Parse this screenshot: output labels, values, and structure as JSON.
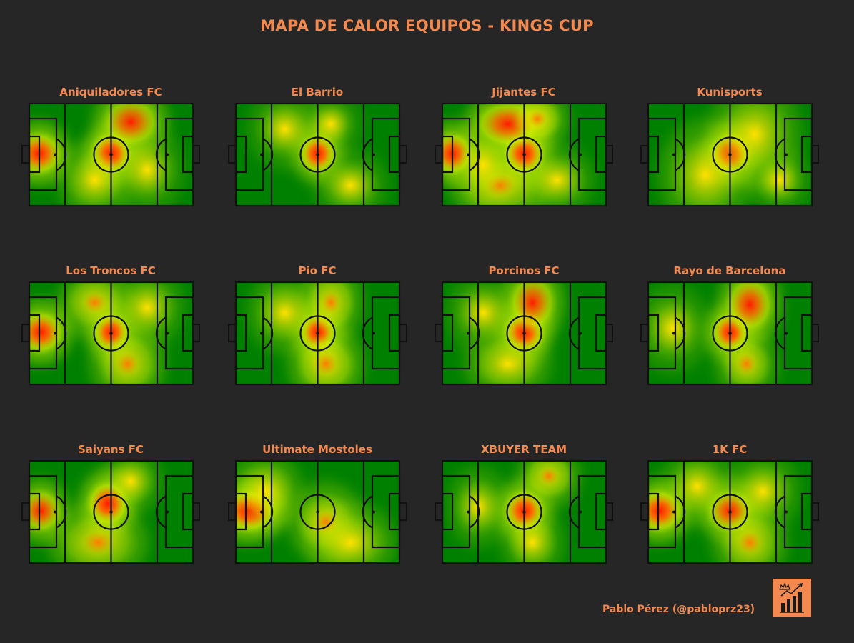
{
  "title": "MAPA DE CALOR EQUIPOS - KINGS CUP",
  "credit": "Pablo Pérez (@pabloprz23)",
  "colors": {
    "background": "#262626",
    "title": "#F4894F",
    "pitch_low": "#008000",
    "pitch_mid": "#FFFF00",
    "pitch_high": "#FF0000",
    "lines": "#000000",
    "logo_bg": "#F4894F"
  },
  "logo_icon": "crown-bar-chart-icon",
  "chart_data": {
    "type": "heatmap",
    "description_units": "normalized pitch coordinates (x 0-1 left to right, y 0-1 top to bottom)",
    "teams": [
      {
        "name": "Aniquiladores FC",
        "hotspots": [
          [
            0.06,
            0.49,
            0.1,
            0.14,
            0.95
          ],
          [
            0.5,
            0.49,
            0.09,
            0.14,
            1.0
          ],
          [
            0.62,
            0.18,
            0.12,
            0.16,
            0.8
          ],
          [
            0.4,
            0.75,
            0.12,
            0.18,
            0.45
          ],
          [
            0.72,
            0.65,
            0.12,
            0.2,
            0.35
          ]
        ]
      },
      {
        "name": "El Barrio",
        "hotspots": [
          [
            0.5,
            0.49,
            0.08,
            0.13,
            1.0
          ],
          [
            0.3,
            0.25,
            0.12,
            0.18,
            0.35
          ],
          [
            0.7,
            0.8,
            0.12,
            0.16,
            0.35
          ],
          [
            0.58,
            0.2,
            0.1,
            0.15,
            0.3
          ]
        ]
      },
      {
        "name": "Jijantes FC",
        "hotspots": [
          [
            0.06,
            0.49,
            0.09,
            0.14,
            0.95
          ],
          [
            0.5,
            0.49,
            0.09,
            0.14,
            1.0
          ],
          [
            0.4,
            0.2,
            0.14,
            0.15,
            0.85
          ],
          [
            0.58,
            0.15,
            0.1,
            0.14,
            0.6
          ],
          [
            0.35,
            0.8,
            0.16,
            0.18,
            0.55
          ],
          [
            0.7,
            0.75,
            0.12,
            0.16,
            0.4
          ],
          [
            0.25,
            0.6,
            0.1,
            0.18,
            0.4
          ]
        ]
      },
      {
        "name": "Kunisports",
        "hotspots": [
          [
            0.5,
            0.49,
            0.09,
            0.14,
            1.0
          ],
          [
            0.35,
            0.7,
            0.15,
            0.25,
            0.45
          ],
          [
            0.65,
            0.3,
            0.15,
            0.25,
            0.45
          ],
          [
            0.8,
            0.75,
            0.1,
            0.15,
            0.35
          ]
        ]
      },
      {
        "name": "Los Troncos FC",
        "hotspots": [
          [
            0.07,
            0.49,
            0.1,
            0.14,
            0.95
          ],
          [
            0.5,
            0.49,
            0.08,
            0.13,
            1.0
          ],
          [
            0.4,
            0.2,
            0.12,
            0.16,
            0.55
          ],
          [
            0.6,
            0.8,
            0.12,
            0.18,
            0.6
          ],
          [
            0.72,
            0.25,
            0.12,
            0.18,
            0.4
          ]
        ]
      },
      {
        "name": "Pio FC",
        "hotspots": [
          [
            0.5,
            0.49,
            0.08,
            0.13,
            1.0
          ],
          [
            0.58,
            0.2,
            0.1,
            0.18,
            0.6
          ],
          [
            0.55,
            0.8,
            0.12,
            0.18,
            0.65
          ],
          [
            0.3,
            0.3,
            0.12,
            0.18,
            0.45
          ]
        ]
      },
      {
        "name": "Porcinos FC",
        "hotspots": [
          [
            0.5,
            0.49,
            0.09,
            0.14,
            1.0
          ],
          [
            0.55,
            0.2,
            0.1,
            0.18,
            0.8
          ],
          [
            0.4,
            0.8,
            0.14,
            0.16,
            0.5
          ],
          [
            0.25,
            0.3,
            0.12,
            0.18,
            0.35
          ]
        ]
      },
      {
        "name": "Rayo de Barcelona",
        "hotspots": [
          [
            0.5,
            0.49,
            0.08,
            0.13,
            1.0
          ],
          [
            0.62,
            0.22,
            0.1,
            0.18,
            0.85
          ],
          [
            0.6,
            0.8,
            0.1,
            0.16,
            0.55
          ],
          [
            0.15,
            0.45,
            0.12,
            0.2,
            0.35
          ]
        ]
      },
      {
        "name": "Saiyans FC",
        "hotspots": [
          [
            0.07,
            0.49,
            0.09,
            0.14,
            0.85
          ],
          [
            0.48,
            0.42,
            0.09,
            0.15,
            1.0
          ],
          [
            0.42,
            0.8,
            0.16,
            0.18,
            0.55
          ],
          [
            0.62,
            0.2,
            0.1,
            0.15,
            0.4
          ]
        ]
      },
      {
        "name": "Ultimate Mostoles",
        "hotspots": [
          [
            0.08,
            0.49,
            0.12,
            0.14,
            1.0
          ],
          [
            0.18,
            0.3,
            0.12,
            0.18,
            0.5
          ],
          [
            0.55,
            0.6,
            0.12,
            0.18,
            0.55
          ],
          [
            0.7,
            0.8,
            0.15,
            0.18,
            0.45
          ]
        ]
      },
      {
        "name": "XBUYER TEAM",
        "hotspots": [
          [
            0.5,
            0.49,
            0.09,
            0.14,
            1.0
          ],
          [
            0.65,
            0.15,
            0.1,
            0.14,
            0.6
          ],
          [
            0.55,
            0.8,
            0.1,
            0.16,
            0.45
          ],
          [
            0.22,
            0.45,
            0.1,
            0.18,
            0.4
          ]
        ]
      },
      {
        "name": "1K FC",
        "hotspots": [
          [
            0.07,
            0.49,
            0.1,
            0.14,
            1.0
          ],
          [
            0.5,
            0.49,
            0.1,
            0.14,
            0.85
          ],
          [
            0.62,
            0.8,
            0.12,
            0.18,
            0.55
          ],
          [
            0.3,
            0.25,
            0.12,
            0.18,
            0.4
          ],
          [
            0.7,
            0.3,
            0.12,
            0.18,
            0.4
          ]
        ]
      }
    ]
  }
}
